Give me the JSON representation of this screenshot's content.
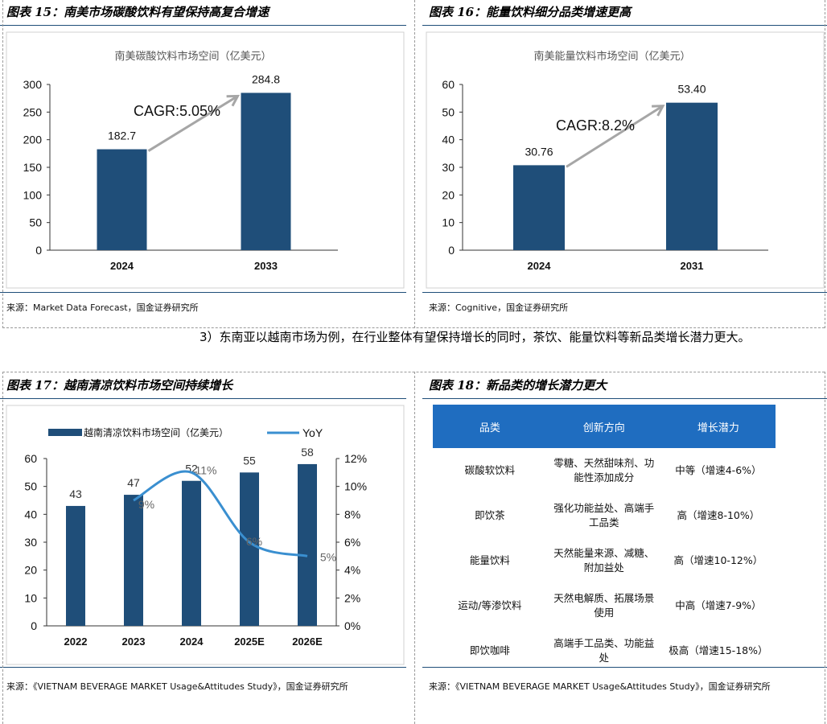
{
  "fig15": {
    "title": "图表 15：南美市场碳酸饮料有望保持高复合增速",
    "source": "来源：Market Data Forecast，国金证券研究所",
    "chart_data": {
      "type": "bar",
      "title": "南美碳酸饮料市场空间（亿美元）",
      "categories": [
        "2024",
        "2033"
      ],
      "values": [
        182.7,
        284.8
      ],
      "value_labels": [
        "182.7",
        "284.8"
      ],
      "yticks": [
        "0",
        "50",
        "100",
        "150",
        "200",
        "250",
        "300"
      ],
      "ylim": [
        0,
        300
      ],
      "annotation": "CAGR:5.05%",
      "bar_color": "#1f4e79"
    }
  },
  "fig16": {
    "title": "图表 16：能量饮料细分品类增速更高",
    "source": "来源：Cognitive，国金证券研究所",
    "chart_data": {
      "type": "bar",
      "title": "南美能量饮料市场空间（亿美元）",
      "categories": [
        "2024",
        "2031"
      ],
      "values": [
        30.76,
        53.4
      ],
      "value_labels": [
        "30.76",
        "53.40"
      ],
      "yticks": [
        "0",
        "10",
        "20",
        "30",
        "40",
        "50",
        "60"
      ],
      "ylim": [
        0,
        60
      ],
      "annotation": "CAGR:8.2%",
      "bar_color": "#1f4e79"
    }
  },
  "paragraph": "3）东南亚以越南市场为例，在行业整体有望保持增长的同时，茶饮、能量饮料等新品类增长潜力更大。",
  "fig17": {
    "title": "图表 17：越南清凉饮料市场空间持续增长",
    "source": "来源：《VIETNAM BEVERAGE MARKET Usage&Attitudes Study》，国金证券研究所",
    "chart_data": {
      "type": "bar+line",
      "categories": [
        "2022",
        "2023",
        "2024",
        "2025E",
        "2026E"
      ],
      "series": [
        {
          "name": "越南清凉饮料市场空间（亿美元）",
          "type": "bar",
          "axis": "left",
          "values": [
            43,
            47,
            52,
            55,
            58
          ],
          "labels": [
            "43",
            "47",
            "52",
            "55",
            "58"
          ]
        },
        {
          "name": "YoY",
          "type": "line",
          "axis": "right",
          "values": [
            null,
            9,
            11,
            6,
            5
          ],
          "labels": [
            "",
            "9%",
            "11%",
            "6%",
            "5%"
          ]
        }
      ],
      "yticks_left": [
        "0",
        "10",
        "20",
        "30",
        "40",
        "50",
        "60"
      ],
      "ylim_left": [
        0,
        60
      ],
      "yticks_right": [
        "0%",
        "2%",
        "4%",
        "6%",
        "8%",
        "10%",
        "12%"
      ],
      "ylim_right": [
        0,
        12
      ],
      "bar_color": "#1f4e79",
      "line_color": "#3a8fd0"
    }
  },
  "fig18": {
    "title": "图表 18：新品类的增长潜力更大",
    "source": "来源：《VIETNAM BEVERAGE MARKET Usage&Attitudes Study》，国金证券研究所",
    "table": {
      "headers": [
        "品类",
        "创新方向",
        "增长潜力"
      ],
      "rows": [
        [
          "碳酸软饮料",
          "零糖、天然甜味剂、功能性添加成分",
          "中等（增速4-6%）"
        ],
        [
          "即饮茶",
          "强化功能益处、高端手工品类",
          "高（增速8-10%）"
        ],
        [
          "能量饮料",
          "天然能量来源、减糖、附加益处",
          "高（增速10-12%）"
        ],
        [
          "运动/等渗饮料",
          "天然电解质、拓展场景使用",
          "中高（增速7-9%）"
        ],
        [
          "即饮咖啡",
          "高端手工品类、功能益处",
          "极高（增速15-18%）"
        ]
      ]
    }
  }
}
